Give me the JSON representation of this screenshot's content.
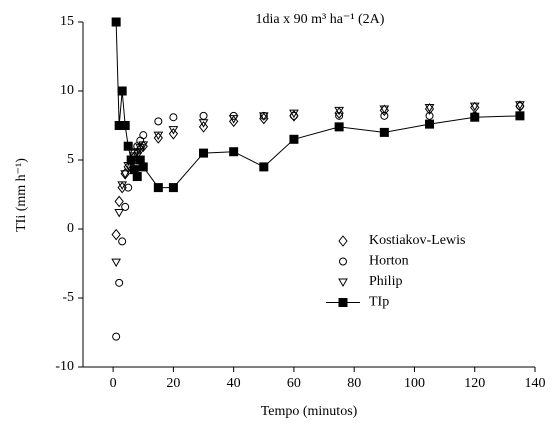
{
  "chart_data": {
    "type": "scatter",
    "title": "1dia x 90 m³ ha⁻¹ (2A)",
    "x_label": "Tempo (minutos)",
    "y_label": "TIi (mm h⁻¹)",
    "xlim": [
      -10,
      140
    ],
    "xticks": [
      0,
      20,
      40,
      60,
      80,
      100,
      120,
      140
    ],
    "ylim": [
      -10,
      15
    ],
    "yticks": [
      -10,
      -5,
      0,
      5,
      10,
      15
    ],
    "legend": "right",
    "series": [
      {
        "name": "Kostiakov-Lewis",
        "color": "#000000",
        "marker": "diamond",
        "line": false,
        "x": [
          1,
          2,
          3,
          4,
          5,
          6,
          7,
          8,
          9,
          10,
          15,
          20,
          30,
          40,
          50,
          60,
          75,
          90,
          105,
          120,
          135
        ],
        "values": [
          -0.4,
          2,
          3,
          4,
          4.5,
          5,
          5.2,
          5.5,
          5.8,
          6,
          6.6,
          6.9,
          7.4,
          7.8,
          8.0,
          8.2,
          8.4,
          8.6,
          8.7,
          8.8,
          8.9
        ]
      },
      {
        "name": "Horton",
        "color": "#000000",
        "marker": "circle",
        "line": false,
        "x": [
          1,
          2,
          3,
          4,
          5,
          6,
          7,
          8,
          9,
          10,
          15,
          20,
          30,
          40,
          50,
          60,
          75,
          90,
          105,
          120,
          135
        ],
        "values": [
          -7.8,
          -3.9,
          -0.9,
          1.6,
          3,
          4.5,
          5.5,
          6,
          6.4,
          6.8,
          7.8,
          8.1,
          8.2,
          8.2,
          8.2,
          8.2,
          8.2,
          8.2,
          8.2,
          8.2,
          8.9
        ]
      },
      {
        "name": "Philip",
        "color": "#000000",
        "marker": "triangle-down",
        "line": false,
        "x": [
          1,
          2,
          3,
          4,
          5,
          6,
          7,
          8,
          9,
          10,
          15,
          20,
          30,
          40,
          50,
          60,
          75,
          90,
          105,
          120,
          135
        ],
        "values": [
          -2.4,
          1.2,
          3.2,
          4,
          4.6,
          5,
          5.3,
          5.6,
          5.9,
          6.1,
          6.8,
          7.2,
          7.7,
          8.0,
          8.2,
          8.4,
          8.6,
          8.7,
          8.8,
          8.9,
          9.0
        ]
      },
      {
        "name": "TIp",
        "color": "#000000",
        "marker": "square-filled",
        "line": true,
        "x": [
          1,
          2,
          3,
          4,
          5,
          6,
          7,
          8,
          9,
          10,
          15,
          20,
          30,
          40,
          50,
          60,
          75,
          90,
          105,
          120,
          135
        ],
        "values": [
          15,
          7.5,
          10,
          7.5,
          6,
          5,
          4.3,
          3.8,
          5,
          4.5,
          3,
          3,
          5.5,
          5.6,
          4.5,
          6.5,
          7.4,
          7,
          7.6,
          8.1,
          8.2
        ]
      }
    ]
  }
}
